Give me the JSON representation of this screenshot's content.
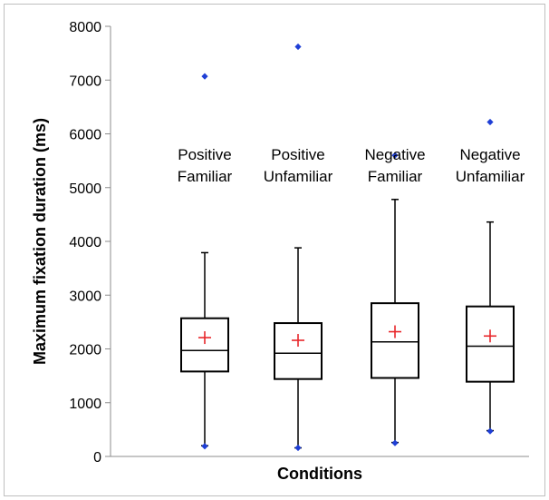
{
  "chart_data": {
    "type": "boxplot",
    "xlabel": "Conditions",
    "ylabel": "Maximum fixation duration (ms)",
    "ylim": [
      0,
      8000
    ],
    "yticks": [
      0,
      1000,
      2000,
      3000,
      4000,
      5000,
      6000,
      7000,
      8000
    ],
    "grid": false,
    "mean_marker": "+",
    "colors": {
      "box": "#000000",
      "mean": "#e8272b",
      "outlier": "#1f3fd6"
    },
    "groups": [
      {
        "label_lines": [
          "Positive",
          "Familiar"
        ],
        "whisker_low": 200,
        "q1": 1580,
        "median": 1970,
        "q3": 2570,
        "whisker_high": 3790,
        "mean": 2210,
        "outliers": [
          190,
          7070
        ]
      },
      {
        "label_lines": [
          "Positive",
          "Unfamiliar"
        ],
        "whisker_low": 160,
        "q1": 1440,
        "median": 1920,
        "q3": 2480,
        "whisker_high": 3880,
        "mean": 2160,
        "outliers": [
          160,
          7620
        ]
      },
      {
        "label_lines": [
          "Negative",
          "Familiar"
        ],
        "whisker_low": 260,
        "q1": 1460,
        "median": 2130,
        "q3": 2850,
        "whisker_high": 4780,
        "mean": 2320,
        "outliers": [
          250,
          5600
        ]
      },
      {
        "label_lines": [
          "Negative",
          "Unfamiliar"
        ],
        "whisker_low": 480,
        "q1": 1390,
        "median": 2050,
        "q3": 2790,
        "whisker_high": 4360,
        "mean": 2240,
        "outliers": [
          470,
          6220
        ]
      }
    ]
  }
}
